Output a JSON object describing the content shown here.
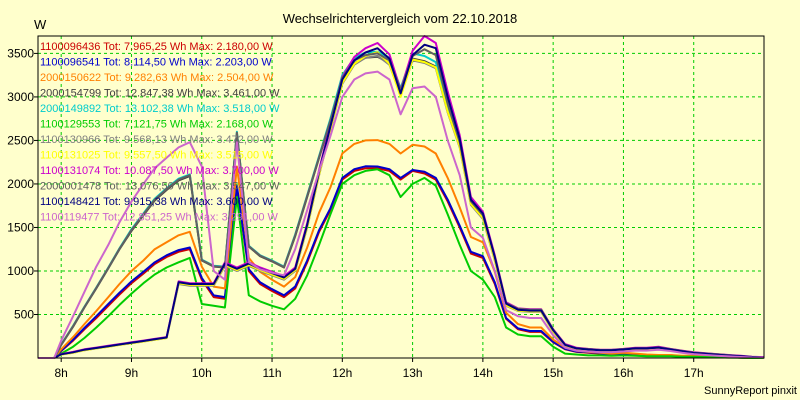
{
  "title": "Wechselrichtervergleich vom 22.10.2018",
  "unit_label": "W",
  "footer": "SunnyReport pinxit",
  "chart_data": {
    "type": "line",
    "title": "Wechselrichtervergleich vom 22.10.2018",
    "ylabel": "W",
    "xlim": [
      7.67,
      18.0
    ],
    "ylim": [
      0,
      3700
    ],
    "grid": true,
    "legend_position": "top-left",
    "x_ticks": [
      8,
      9,
      10,
      11,
      12,
      13,
      14,
      15,
      16,
      17
    ],
    "x_tick_labels": [
      "8h",
      "9h",
      "10h",
      "11h",
      "12h",
      "13h",
      "14h",
      "15h",
      "16h",
      "17h"
    ],
    "y_ticks": [
      500,
      1000,
      1500,
      2000,
      2500,
      3000,
      3500
    ],
    "y_tick_labels": [
      "500",
      "1000",
      "1500",
      "2000",
      "2500",
      "3000",
      "3500"
    ],
    "x": [
      7.67,
      7.9,
      8.0,
      8.17,
      8.33,
      8.5,
      8.67,
      8.83,
      9.0,
      9.17,
      9.33,
      9.5,
      9.67,
      9.83,
      10.0,
      10.17,
      10.33,
      10.5,
      10.67,
      10.83,
      11.0,
      11.17,
      11.33,
      11.5,
      11.67,
      11.83,
      12.0,
      12.17,
      12.33,
      12.5,
      12.67,
      12.83,
      13.0,
      13.17,
      13.33,
      13.5,
      13.67,
      13.83,
      14.0,
      14.17,
      14.33,
      14.5,
      14.67,
      14.83,
      15.0,
      15.17,
      15.33,
      15.5,
      15.67,
      15.83,
      16.0,
      16.17,
      16.33,
      16.5,
      16.67,
      16.83,
      17.0,
      17.17,
      17.33,
      17.5,
      17.67,
      17.83,
      18.0
    ],
    "series": [
      {
        "name": "1100096436 Tot: 7.965,25 Wh Max: 2.180,00 W",
        "color": "#cc0000",
        "values": [
          0,
          0,
          80,
          200,
          330,
          460,
          600,
          730,
          860,
          970,
          1080,
          1160,
          1220,
          1250,
          900,
          700,
          680,
          1950,
          1000,
          850,
          770,
          700,
          800,
          1100,
          1450,
          1700,
          2050,
          2150,
          2180,
          2180,
          2150,
          2050,
          2150,
          2120,
          2050,
          1800,
          1500,
          1200,
          1150,
          850,
          450,
          330,
          300,
          300,
          180,
          100,
          70,
          60,
          50,
          40,
          50,
          40,
          30,
          30,
          30,
          20,
          20,
          15,
          10,
          10,
          5,
          0,
          0
        ]
      },
      {
        "name": "1100096541 Tot: 8.114,50 Wh Max: 2.203,00 W",
        "color": "#0000cc",
        "values": [
          0,
          0,
          85,
          210,
          345,
          480,
          620,
          750,
          880,
          990,
          1100,
          1180,
          1240,
          1270,
          920,
          720,
          700,
          1980,
          1020,
          870,
          790,
          720,
          820,
          1120,
          1470,
          1720,
          2070,
          2170,
          2203,
          2200,
          2170,
          2070,
          2160,
          2140,
          2070,
          1820,
          1520,
          1220,
          1170,
          870,
          460,
          340,
          310,
          310,
          185,
          105,
          75,
          65,
          55,
          45,
          55,
          45,
          35,
          32,
          32,
          22,
          22,
          17,
          12,
          10,
          5,
          0,
          0
        ]
      },
      {
        "name": "2000150622 Tot: 9.282,63 Wh Max: 2.504,00 W",
        "color": "#ff8000",
        "values": [
          0,
          0,
          100,
          240,
          390,
          540,
          700,
          850,
          1000,
          1120,
          1250,
          1330,
          1410,
          1450,
          1050,
          820,
          800,
          2200,
          1150,
          990,
          900,
          820,
          930,
          1270,
          1670,
          1960,
          2350,
          2460,
          2500,
          2504,
          2460,
          2350,
          2450,
          2430,
          2350,
          2070,
          1730,
          1390,
          1330,
          990,
          520,
          390,
          350,
          350,
          210,
          120,
          85,
          70,
          60,
          50,
          60,
          50,
          40,
          35,
          35,
          25,
          25,
          18,
          12,
          10,
          5,
          0,
          0
        ]
      },
      {
        "name": "2000154799 Tot: 12.847,38 Wh Max: 3.461,00 W",
        "color": "#404040",
        "values": [
          0,
          0,
          150,
          360,
          580,
          800,
          1030,
          1250,
          1460,
          1640,
          1810,
          1930,
          2040,
          2090,
          1120,
          1050,
          1040,
          2580,
          1280,
          1170,
          1110,
          1040,
          1400,
          1850,
          2300,
          2720,
          3200,
          3390,
          3450,
          3461,
          3390,
          3050,
          3440,
          3410,
          3350,
          2850,
          2450,
          1780,
          1620,
          1150,
          620,
          560,
          550,
          550,
          320,
          150,
          110,
          100,
          90,
          90,
          100,
          110,
          110,
          120,
          100,
          80,
          60,
          50,
          40,
          30,
          20,
          10,
          5
        ]
      },
      {
        "name": "2000149892 Tot: 13.102,38 Wh Max: 3.518,00 W",
        "color": "#00cccc",
        "values": [
          0,
          0,
          155,
          370,
          590,
          810,
          1040,
          1260,
          1480,
          1660,
          1830,
          1950,
          2060,
          2110,
          1130,
          1060,
          1050,
          2600,
          1290,
          1180,
          1120,
          1050,
          1420,
          1870,
          2320,
          2750,
          3250,
          3450,
          3510,
          3518,
          3450,
          3100,
          3500,
          3470,
          3400,
          2900,
          2480,
          1800,
          1640,
          1160,
          630,
          565,
          555,
          555,
          325,
          152,
          112,
          102,
          92,
          92,
          102,
          112,
          112,
          122,
          102,
          82,
          62,
          52,
          42,
          32,
          22,
          12,
          5
        ]
      },
      {
        "name": "1100129553 Tot: 7.121,75 Wh Max: 2.168,00 W",
        "color": "#00cc00",
        "values": [
          0,
          0,
          50,
          130,
          230,
          350,
          480,
          610,
          740,
          860,
          960,
          1040,
          1100,
          1150,
          620,
          600,
          580,
          1850,
          720,
          650,
          600,
          560,
          680,
          950,
          1300,
          1650,
          2000,
          2100,
          2150,
          2168,
          2100,
          1850,
          2000,
          2070,
          1980,
          1650,
          1300,
          1000,
          900,
          700,
          350,
          270,
          250,
          250,
          130,
          50,
          40,
          30,
          30,
          25,
          30,
          25,
          20,
          20,
          20,
          15,
          15,
          10,
          8,
          5,
          3,
          0,
          0
        ]
      },
      {
        "name": "1100130966 Tot: 9.568,13 Wh Max: 3.472,00 W",
        "color": "#808080",
        "values": [
          0,
          0,
          40,
          60,
          90,
          110,
          130,
          150,
          170,
          190,
          210,
          230,
          850,
          830,
          830,
          830,
          1060,
          1000,
          1060,
          1000,
          950,
          900,
          1000,
          1500,
          2100,
          2620,
          3150,
          3370,
          3450,
          3472,
          3370,
          3020,
          3420,
          3390,
          3330,
          2820,
          2420,
          1760,
          1600,
          1120,
          600,
          540,
          530,
          530,
          300,
          140,
          100,
          90,
          80,
          80,
          90,
          100,
          100,
          110,
          90,
          70,
          50,
          40,
          30,
          20,
          15,
          10,
          5
        ]
      },
      {
        "name": "1100131025 Tot: 9.557,50 Wh Max: 3.515,00 W",
        "color": "#ffff00",
        "values": [
          0,
          0,
          40,
          60,
          90,
          110,
          130,
          150,
          170,
          190,
          210,
          230,
          860,
          840,
          840,
          840,
          1070,
          1010,
          1070,
          1010,
          960,
          910,
          1010,
          1510,
          2110,
          2630,
          3160,
          3380,
          3470,
          3515,
          3380,
          3000,
          3430,
          3400,
          3340,
          2830,
          2430,
          1770,
          1610,
          1130,
          605,
          545,
          535,
          535,
          305,
          142,
          102,
          92,
          82,
          82,
          92,
          102,
          102,
          112,
          92,
          72,
          52,
          42,
          32,
          22,
          16,
          10,
          5
        ]
      },
      {
        "name": "1100131074 Tot: 10.087,50 Wh Max: 3.700,00 W",
        "color": "#cc00cc",
        "values": [
          0,
          0,
          45,
          70,
          100,
          120,
          140,
          160,
          180,
          200,
          220,
          240,
          880,
          860,
          860,
          860,
          1100,
          1040,
          1100,
          1040,
          990,
          940,
          1040,
          1550,
          2160,
          2690,
          3230,
          3460,
          3560,
          3620,
          3490,
          3080,
          3530,
          3700,
          3620,
          3060,
          2560,
          1850,
          1680,
          1180,
          640,
          570,
          560,
          560,
          330,
          160,
          118,
          105,
          95,
          95,
          105,
          118,
          118,
          130,
          105,
          85,
          65,
          55,
          45,
          35,
          25,
          15,
          10
        ]
      },
      {
        "name": "2000001478 Tot: 13.076,50 Wh Max: 3.547,00 W",
        "color": "#606060",
        "values": [
          0,
          0,
          152,
          365,
          585,
          805,
          1035,
          1255,
          1470,
          1650,
          1820,
          1940,
          2050,
          2100,
          1125,
          1055,
          1045,
          2590,
          1285,
          1175,
          1115,
          1045,
          1410,
          1860,
          2310,
          2730,
          3220,
          3420,
          3480,
          3500,
          3420,
          3080,
          3470,
          3547,
          3480,
          2920,
          2480,
          1800,
          1640,
          1160,
          630,
          565,
          555,
          555,
          325,
          152,
          112,
          102,
          92,
          92,
          102,
          112,
          112,
          122,
          102,
          82,
          62,
          52,
          42,
          32,
          22,
          12,
          5
        ]
      },
      {
        "name": "1100148421 Tot: 9.915,38 Wh Max: 3.600,00 W",
        "color": "#000080",
        "values": [
          0,
          0,
          42,
          65,
          95,
          115,
          135,
          155,
          175,
          195,
          215,
          235,
          870,
          850,
          850,
          850,
          1085,
          1025,
          1085,
          1025,
          975,
          925,
          1025,
          1530,
          2140,
          2660,
          3200,
          3420,
          3510,
          3560,
          3440,
          3040,
          3480,
          3600,
          3560,
          3000,
          2520,
          1820,
          1660,
          1160,
          625,
          555,
          545,
          545,
          318,
          150,
          110,
          98,
          88,
          88,
          98,
          110,
          110,
          120,
          98,
          78,
          58,
          48,
          38,
          28,
          20,
          12,
          6
        ]
      },
      {
        "name": "1100119477 Tot: 12.851,25 Wh Max: 3.291,00 W",
        "color": "#cc66cc",
        "values": [
          0,
          0,
          200,
          480,
          760,
          1050,
          1300,
          1560,
          1800,
          2000,
          2180,
          2300,
          2420,
          2480,
          2200,
          1000,
          900,
          2480,
          1100,
          1020,
          980,
          950,
          1250,
          1700,
          2150,
          2550,
          3000,
          3200,
          3270,
          3291,
          3200,
          2800,
          3100,
          3120,
          3000,
          2500,
          2100,
          1500,
          1380,
          1000,
          550,
          480,
          460,
          460,
          260,
          120,
          85,
          75,
          65,
          65,
          75,
          85,
          85,
          95,
          80,
          60,
          45,
          35,
          25,
          18,
          12,
          6,
          3
        ]
      }
    ]
  }
}
